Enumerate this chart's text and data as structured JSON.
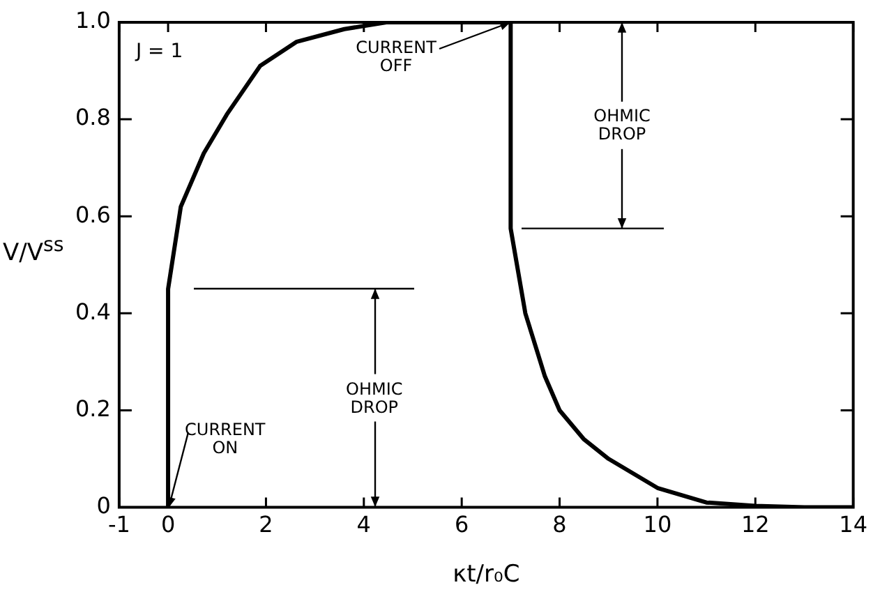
{
  "chart_data": {
    "type": "line",
    "xlabel": "κt/r₀C",
    "ylabel": "V/V$^{ss}$",
    "x": [
      0,
      0,
      0.26,
      0.73,
      1.2,
      1.88,
      2.63,
      3.6,
      4.46,
      5.5,
      7,
      7,
      7.3,
      7.7,
      8,
      8.5,
      9,
      10,
      11,
      12,
      13,
      14
    ],
    "values": [
      0,
      0.45,
      0.62,
      0.73,
      0.81,
      0.91,
      0.96,
      0.986,
      1,
      1,
      1,
      0.575,
      0.4,
      0.27,
      0.2,
      0.14,
      0.1,
      0.04,
      0.01,
      0.003,
      0,
      0
    ],
    "color": "#000000",
    "xlim": [
      -1,
      14
    ],
    "xticks": [
      -1,
      0,
      2,
      4,
      6,
      8,
      10,
      12,
      14
    ],
    "ylim": [
      0,
      1
    ],
    "yticks": [
      0,
      0.2,
      0.4,
      0.6,
      0.8,
      {
        "value": 1,
        "label": "1.0"
      }
    ],
    "grid": false,
    "legend": false,
    "annotations": [
      "J = 1",
      {
        "text": "CURRENT ON",
        "x": 0,
        "y": 0
      },
      {
        "text": "CURRENT OFF",
        "x": 7,
        "y": 1
      },
      "OHMIC DROP",
      "OHMIC DROP"
    ]
  }
}
